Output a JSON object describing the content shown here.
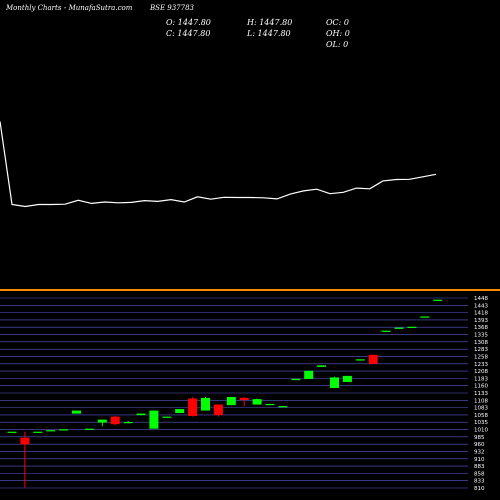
{
  "header": {
    "site": "Monthly Charts",
    "source": "- MunafaSutra.com",
    "symbol": "BSE 937783"
  },
  "ohlc_readout": {
    "o": "O: 1447.80",
    "h": "H: 1447.80",
    "oc": "OC: 0",
    "c": "C: 1447.80",
    "l": "L: 1447.80",
    "oh": "OH: 0",
    "ol": "OL: 0"
  },
  "colors": {
    "background": "#000000",
    "bull": "#00ff00",
    "bear": "#ff0000",
    "line": "#ffffff",
    "divider": "#ff8c00",
    "grid": "#5a5ad2"
  },
  "y_tick_labels": [
    "1448",
    "1443",
    "1418",
    "1393",
    "1368",
    "1335",
    "1308",
    "1283",
    "1258",
    "1233",
    "1208",
    "1183",
    "1160",
    "1133",
    "1108",
    "1083",
    "1058",
    "1035",
    "1010",
    "985",
    "960",
    "932",
    "910",
    "883",
    "858",
    "833",
    "810"
  ],
  "chart_data": {
    "type": "candlestick",
    "title": "",
    "ylim": [
      810,
      1460
    ],
    "line_series": [
      1450,
      850,
      835,
      850,
      850,
      852,
      880,
      858,
      868,
      862,
      865,
      878,
      872,
      885,
      868,
      905,
      888,
      902,
      900,
      900,
      898,
      890,
      925,
      948,
      960,
      928,
      938,
      968,
      963,
      1020,
      1030,
      1032,
      1050,
      1068
    ],
    "candles": [
      {
        "open": 1010,
        "high": 1010,
        "low": 1010,
        "close": 1010
      },
      {
        "open": 990,
        "high": 1010,
        "low": 825,
        "close": 968
      },
      {
        "open": 1010,
        "high": 1010,
        "low": 1010,
        "close": 1010
      },
      {
        "open": 1015,
        "high": 1015,
        "low": 1015,
        "close": 1015
      },
      {
        "open": 1018,
        "high": 1018,
        "low": 1018,
        "close": 1018
      },
      {
        "open": 1070,
        "high": 1075,
        "low": 1070,
        "close": 1080
      },
      {
        "open": 1020,
        "high": 1020,
        "low": 1020,
        "close": 1020
      },
      {
        "open": 1040,
        "high": 1045,
        "low": 1028,
        "close": 1050
      },
      {
        "open": 1060,
        "high": 1062,
        "low": 1032,
        "close": 1035
      },
      {
        "open": 1040,
        "high": 1045,
        "low": 1040,
        "close": 1042
      },
      {
        "open": 1065,
        "high": 1065,
        "low": 1065,
        "close": 1070
      },
      {
        "open": 1020,
        "high": 1080,
        "low": 1020,
        "close": 1080
      },
      {
        "open": 1060,
        "high": 1060,
        "low": 1060,
        "close": 1060
      },
      {
        "open": 1072,
        "high": 1082,
        "low": 1072,
        "close": 1085
      },
      {
        "open": 1120,
        "high": 1125,
        "low": 1060,
        "close": 1062
      },
      {
        "open": 1080,
        "high": 1125,
        "low": 1080,
        "close": 1122
      },
      {
        "open": 1100,
        "high": 1100,
        "low": 1060,
        "close": 1065
      },
      {
        "open": 1098,
        "high": 1125,
        "low": 1098,
        "close": 1125
      },
      {
        "open": 1122,
        "high": 1125,
        "low": 1095,
        "close": 1115
      },
      {
        "open": 1100,
        "high": 1120,
        "low": 1100,
        "close": 1118
      },
      {
        "open": 1102,
        "high": 1102,
        "low": 1102,
        "close": 1102
      },
      {
        "open": 1095,
        "high": 1095,
        "low": 1095,
        "close": 1095
      },
      {
        "open": 1182,
        "high": 1182,
        "low": 1182,
        "close": 1185
      },
      {
        "open": 1185,
        "high": 1212,
        "low": 1185,
        "close": 1212
      },
      {
        "open": 1225,
        "high": 1225,
        "low": 1225,
        "close": 1230
      },
      {
        "open": 1155,
        "high": 1192,
        "low": 1155,
        "close": 1190
      },
      {
        "open": 1175,
        "high": 1195,
        "low": 1175,
        "close": 1195
      },
      {
        "open": 1250,
        "high": 1250,
        "low": 1250,
        "close": 1250
      },
      {
        "open": 1265,
        "high": 1265,
        "low": 1235,
        "close": 1235
      },
      {
        "open": 1345,
        "high": 1345,
        "low": 1345,
        "close": 1345
      },
      {
        "open": 1355,
        "high": 1355,
        "low": 1355,
        "close": 1355
      },
      {
        "open": 1358,
        "high": 1358,
        "low": 1358,
        "close": 1358
      },
      {
        "open": 1392,
        "high": 1392,
        "low": 1392,
        "close": 1392
      },
      {
        "open": 1447.8,
        "high": 1447.8,
        "low": 1447.8,
        "close": 1447.8
      }
    ]
  }
}
